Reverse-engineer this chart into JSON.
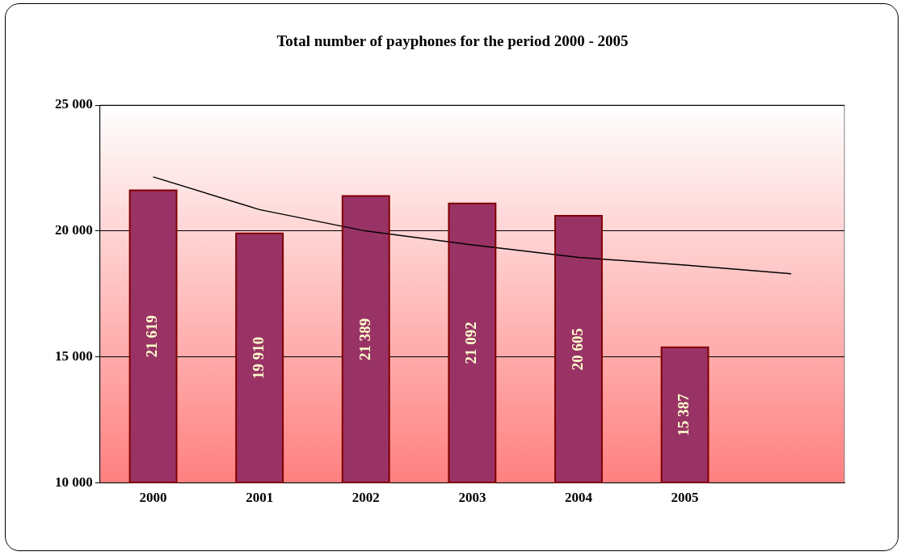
{
  "chart_data": {
    "type": "bar",
    "title": "Total number of payphones for the period 2000 - 2005",
    "categories": [
      "2000",
      "2001",
      "2002",
      "2003",
      "2004",
      "2005",
      null
    ],
    "series": [
      {
        "color": "#993366",
        "values": [
          21619,
          19910,
          21389,
          21092,
          20605,
          15387,
          null
        ],
        "value_labels": [
          "21 619",
          "19 910",
          "21 389",
          "21 092",
          "20 605",
          "15 387",
          null
        ]
      },
      {
        "type": "line",
        "color": "#000000",
        "marker": "none",
        "values": [
          22150,
          20850,
          20000,
          19450,
          18950,
          18650,
          18300
        ]
      }
    ],
    "ylim": [
      10000,
      25000
    ],
    "yticks": [
      {
        "value": 10000,
        "label": "10 000"
      },
      {
        "value": 15000,
        "label": "15 000"
      },
      {
        "value": 20000,
        "label": "20 000"
      },
      {
        "value": 25000,
        "label": "25 000"
      }
    ],
    "grid": "y",
    "legend": false
  }
}
